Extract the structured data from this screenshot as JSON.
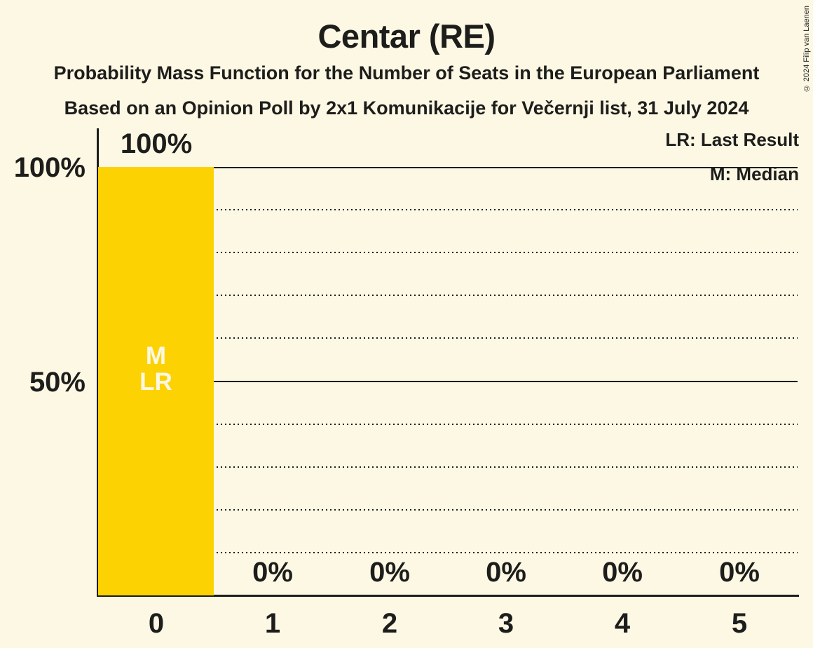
{
  "title": "Centar (RE)",
  "subtitles": [
    "Probability Mass Function for the Number of Seats in the European Parliament",
    "Based on an Opinion Poll by 2x1 Komunikacije for Večernji list, 31 July 2024"
  ],
  "copyright": "© 2024 Filip van Laenen",
  "legend": [
    {
      "id": "last-result",
      "label": "LR: Last Result"
    },
    {
      "id": "median",
      "label": "M: Median"
    }
  ],
  "colors": {
    "background": "#FDF8E4",
    "bar": "#FCD203",
    "text": "#1D1D1B",
    "bar_annotation_text": "#FDF8E4"
  },
  "chart_data": {
    "type": "bar",
    "title": "Centar (RE)",
    "categories": [
      "0",
      "1",
      "2",
      "3",
      "4",
      "5"
    ],
    "values": [
      100,
      0,
      0,
      0,
      0,
      0
    ],
    "value_labels": [
      "100%",
      "0%",
      "0%",
      "0%",
      "0%",
      "0%"
    ],
    "ylim": [
      0,
      100
    ],
    "y_axis_labels": [
      {
        "text": "100%",
        "percent": 100
      },
      {
        "text": "50%",
        "percent": 50
      }
    ],
    "gridlines": {
      "dotted_percents": [
        10,
        20,
        30,
        40,
        60,
        70,
        80,
        90
      ],
      "solid_percents": [
        50,
        100
      ]
    },
    "annotations": [
      {
        "category": "0",
        "lines": [
          "M",
          "LR"
        ]
      }
    ],
    "legend_position": "top-right",
    "grid": true
  }
}
